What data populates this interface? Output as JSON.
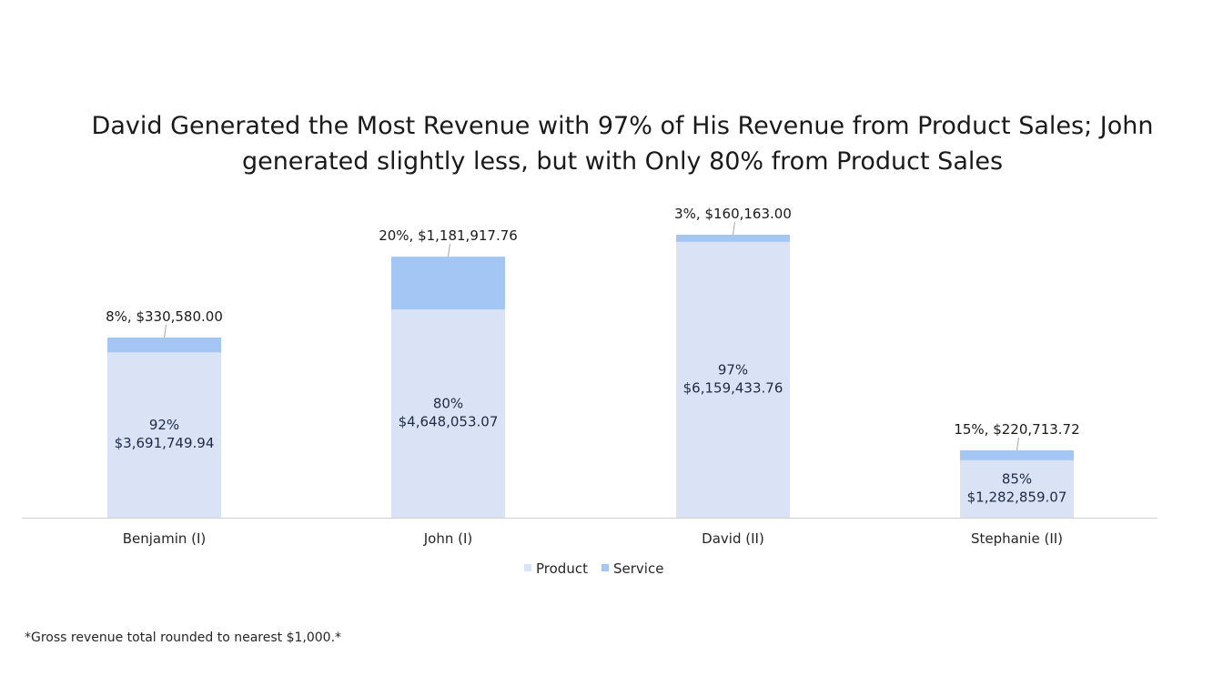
{
  "chart_data": {
    "type": "bar",
    "stacked": true,
    "title_lines": [
      "David Generated the Most Revenue with 97% of His Revenue from Product Sales; John",
      "generated slightly less, but with Only 80% from Product Sales"
    ],
    "categories": [
      "Benjamin (I)",
      "John (I)",
      "David (II)",
      "Stephanie (II)"
    ],
    "series": [
      {
        "name": "Product",
        "color": "#dae3f5",
        "values": [
          3691749.94,
          4648053.07,
          6159433.76,
          1282859.07
        ],
        "labels_pct": [
          "92%",
          "80%",
          "97%",
          "85%"
        ],
        "labels_value": [
          "$3,691,749.94",
          "$4,648,053.07",
          "$6,159,433.76",
          "$1,282,859.07"
        ]
      },
      {
        "name": "Service",
        "color": "#a4c6f4",
        "values": [
          330580.0,
          1181917.76,
          160163.0,
          220713.72
        ],
        "labels": [
          "8%,  $330,580.00",
          "20%,  $1,181,917.76",
          "3%,  $160,163.00",
          "15%,  $220,713.72"
        ]
      }
    ],
    "xlabel": "",
    "ylabel": "",
    "y_axis_visible": false,
    "grid": false,
    "legend_placement": "bottom",
    "footnote": "*Gross revenue total rounded to nearest $1,000.*"
  }
}
